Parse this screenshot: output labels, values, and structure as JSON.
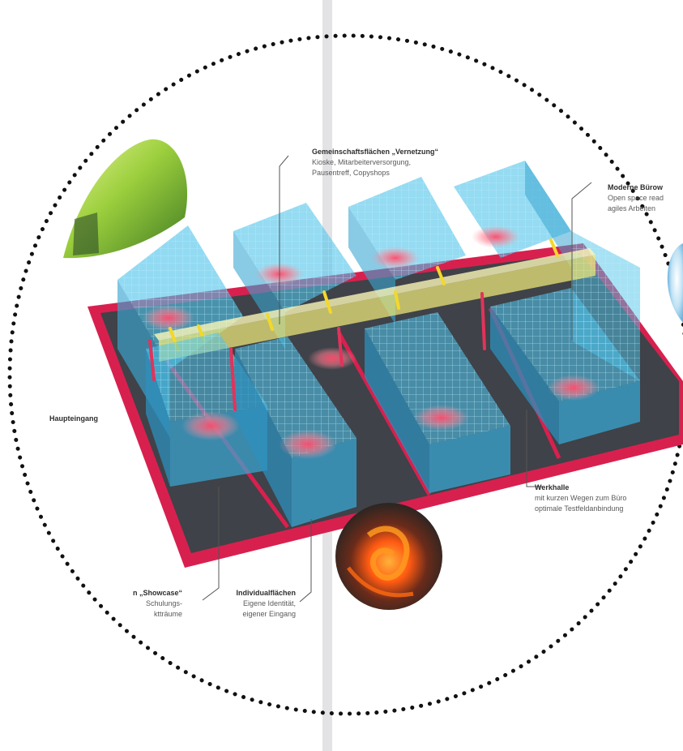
{
  "labels": {
    "gemeinschaft": {
      "title": "Gemeinschaftsflächen „Vernetzung“",
      "lines": [
        "Kioske, Mitarbeiterversorgung,",
        "Pausentreff, Copyshops"
      ]
    },
    "buero": {
      "title": "Moderne Bürow",
      "lines": [
        "Open space read",
        "agiles Arbeiten"
      ]
    },
    "haupteingang": {
      "title": "Haupteingang"
    },
    "werkhalle": {
      "title": "Werkhalle",
      "lines": [
        "mit kurzen Wegen zum Büro",
        "optimale Testfeldanbindung"
      ]
    },
    "showcase": {
      "title": "n „Showcase“",
      "lines": [
        "Schulungs-",
        "ktträume"
      ]
    },
    "individual": {
      "title": "Individualflächen",
      "lines": [
        "Eigene Identität,",
        "eigener Eingang"
      ]
    }
  },
  "colors": {
    "base_red": "#d8204e",
    "floor": "#3f4248",
    "glass": "#4fc3ea",
    "connector": "#f1ea7a",
    "heat": "#ff5f7a"
  }
}
